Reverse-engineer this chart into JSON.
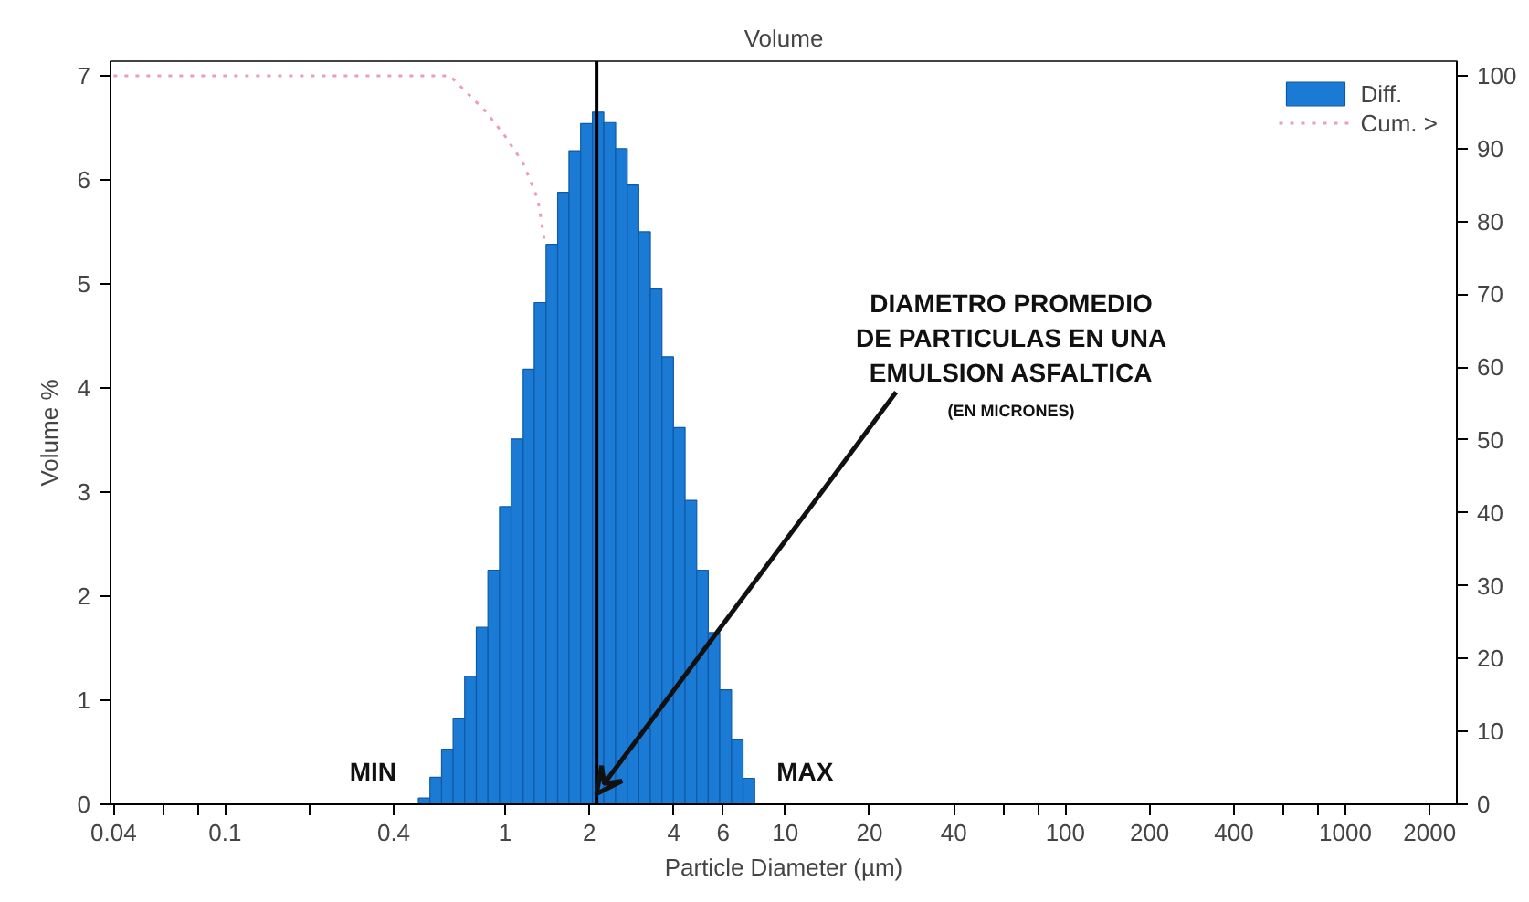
{
  "chart_data": {
    "type": "histogram",
    "title": "Volume",
    "xlabel": "Particle Diameter (µm)",
    "ylabel": "Volume %",
    "log": "x",
    "grid": false,
    "legend": "top right",
    "xlim": [
      0.039,
      2500
    ],
    "ylim": [
      0,
      7.14
    ],
    "y2lim": [
      0,
      102
    ],
    "xticks": [
      0.04,
      {
        "value": 0.06,
        "label": null
      },
      {
        "value": 0.08,
        "label": null
      },
      0.1,
      {
        "value": 0.2,
        "label": null
      },
      0.4,
      1,
      2,
      4,
      6,
      10,
      20,
      40,
      {
        "value": 60,
        "label": null
      },
      {
        "value": 80,
        "label": null
      },
      100,
      200,
      400,
      {
        "value": 600,
        "label": null
      },
      {
        "value": 800,
        "label": null
      },
      1000,
      2000
    ],
    "yticks": [
      0,
      1,
      2,
      3,
      4,
      5,
      6,
      7
    ],
    "y2ticks": [
      0,
      10,
      20,
      30,
      40,
      50,
      60,
      70,
      80,
      90,
      100
    ],
    "series": [
      {
        "name": "Diff.",
        "color": "#1a7ad4",
        "bins": [
          0.49,
          0.539,
          0.593,
          0.652,
          0.717,
          0.789,
          0.868,
          0.955,
          1.05,
          1.16,
          1.27,
          1.4,
          1.54,
          1.69,
          1.86,
          2.05,
          2.25,
          2.48,
          2.73,
          3.0,
          3.3,
          3.63,
          3.99,
          4.39,
          4.83,
          5.31,
          5.84,
          6.43,
          7.07,
          7.78
        ],
        "values": [
          0.06,
          0.26,
          0.53,
          0.82,
          1.23,
          1.7,
          2.25,
          2.86,
          3.51,
          4.18,
          4.82,
          5.38,
          5.88,
          6.28,
          6.54,
          6.65,
          6.55,
          6.3,
          5.95,
          5.5,
          4.95,
          4.3,
          3.62,
          2.92,
          2.25,
          1.65,
          1.1,
          0.62,
          0.25
        ]
      },
      {
        "name": "Cum. >",
        "type": "line",
        "axis": "y2",
        "color": "#e8a0b4",
        "line_style": "dotted",
        "x": [
          0.04,
          0.5,
          0.635,
          0.738,
          0.857,
          1.0,
          1.16,
          1.31,
          1.38
        ],
        "values": [
          100,
          100,
          100,
          97.5,
          95,
          91.7,
          88,
          83,
          77.5
        ]
      }
    ],
    "ref_lines": [
      {
        "axis": "x",
        "value": 2.12,
        "color": "#000000"
      }
    ],
    "annotations": [
      {
        "text": "MIN",
        "x": 0.49,
        "y": 0
      },
      {
        "text": "MAX",
        "x": 7.78,
        "y": 0
      },
      {
        "text": "DIAMETRO PROMEDIO\nDE PARTICULAS EN UNA\nEMULSION ASFALTICA",
        "x": 2.12,
        "y": 0.1
      },
      "(EN MICRONES)"
    ]
  }
}
